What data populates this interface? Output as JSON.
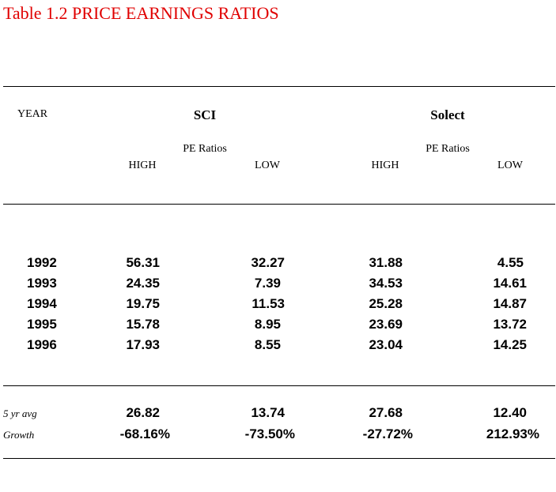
{
  "title": "Table 1.2  PRICE EARNINGS RATIOS",
  "headers": {
    "year": "YEAR",
    "group1": "SCI",
    "group2": "Solect",
    "sub_label": "PE Ratios",
    "high": "HIGH",
    "low": "LOW"
  },
  "rows": [
    {
      "year": "1992",
      "sci_high": "56.31",
      "sci_low": "32.27",
      "solect_high": "31.88",
      "solect_low": "4.55"
    },
    {
      "year": "1993",
      "sci_high": "24.35",
      "sci_low": "7.39",
      "solect_high": "34.53",
      "solect_low": "14.61"
    },
    {
      "year": "1994",
      "sci_high": "19.75",
      "sci_low": "11.53",
      "solect_high": "25.28",
      "solect_low": "14.87"
    },
    {
      "year": "1995",
      "sci_high": "15.78",
      "sci_low": "8.95",
      "solect_high": "23.69",
      "solect_low": "13.72"
    },
    {
      "year": "1996",
      "sci_high": "17.93",
      "sci_low": "8.55",
      "solect_high": "23.04",
      "solect_low": "14.25"
    }
  ],
  "summary": [
    {
      "label": "5 yr avg",
      "sci_high": "26.82",
      "sci_low": "13.74",
      "solect_high": "27.68",
      "solect_low": "12.40"
    },
    {
      "label": "Growth",
      "sci_high": "-68.16%",
      "sci_low": "-73.50%",
      "solect_high": "-27.72%",
      "solect_low": "212.93%"
    }
  ]
}
